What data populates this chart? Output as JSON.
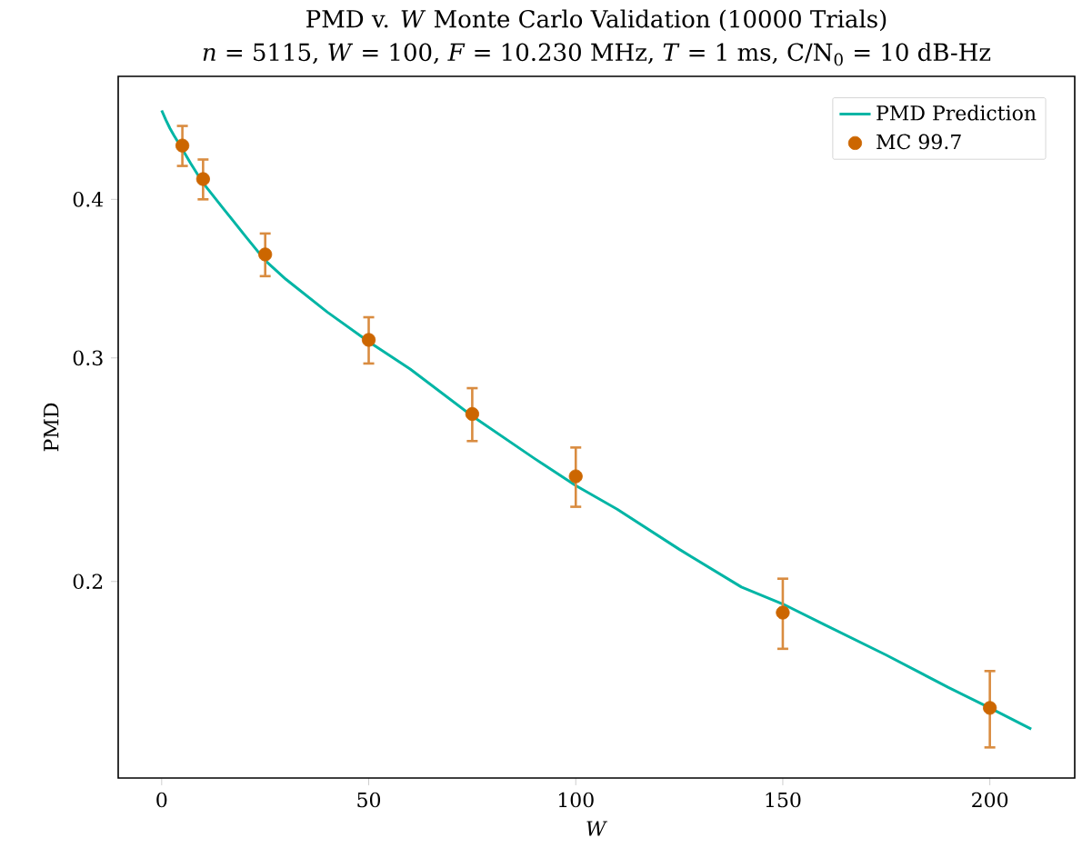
{
  "chart_data": {
    "type": "line",
    "title": "PMD v. *W* Monte Carlo Validation (10000 Trials)",
    "subtitle": "*n* = 5115, *W* = 100, *F* = 10.230 MHz, *T* = 1 ms, C/N$_{0}$ = 10 dB-Hz",
    "xlabel": "*W*",
    "ylabel": "PMD",
    "xlim": [
      -10.5,
      220.5
    ],
    "xticks": [
      0,
      50,
      100,
      150,
      200
    ],
    "ylim": [
      0.14,
      0.5
    ],
    "yticks": [
      0.2,
      0.3,
      0.4
    ],
    "log": "y",
    "legend": "top right",
    "series": [
      {
        "name": "PMD Prediction",
        "color": "#00b5a5",
        "marker": "none",
        "x": [
          0,
          1,
          2,
          3,
          5,
          7,
          10,
          15,
          20,
          25,
          30,
          40,
          50,
          60,
          75,
          90,
          100,
          110,
          125,
          140,
          150,
          160,
          175,
          190,
          200,
          210
        ],
        "values": [
          0.47,
          0.462,
          0.455,
          0.449,
          0.438,
          0.427,
          0.412,
          0.393,
          0.375,
          0.358,
          0.346,
          0.326,
          0.309,
          0.294,
          0.27,
          0.25,
          0.238,
          0.228,
          0.212,
          0.198,
          0.192,
          0.185,
          0.175,
          0.165,
          0.159,
          0.153
        ]
      },
      {
        "name": "MC 99.7",
        "type": "scatter",
        "color": "#cc6600",
        "marker": "circle",
        "x": [
          5,
          10,
          25,
          50,
          75,
          100,
          150,
          200
        ],
        "values": [
          0.441,
          0.415,
          0.362,
          0.31,
          0.271,
          0.242,
          0.189,
          0.159
        ],
        "errors": [
          0.016,
          0.015,
          0.014,
          0.013,
          0.013,
          0.013,
          0.012,
          0.011
        ]
      }
    ]
  }
}
